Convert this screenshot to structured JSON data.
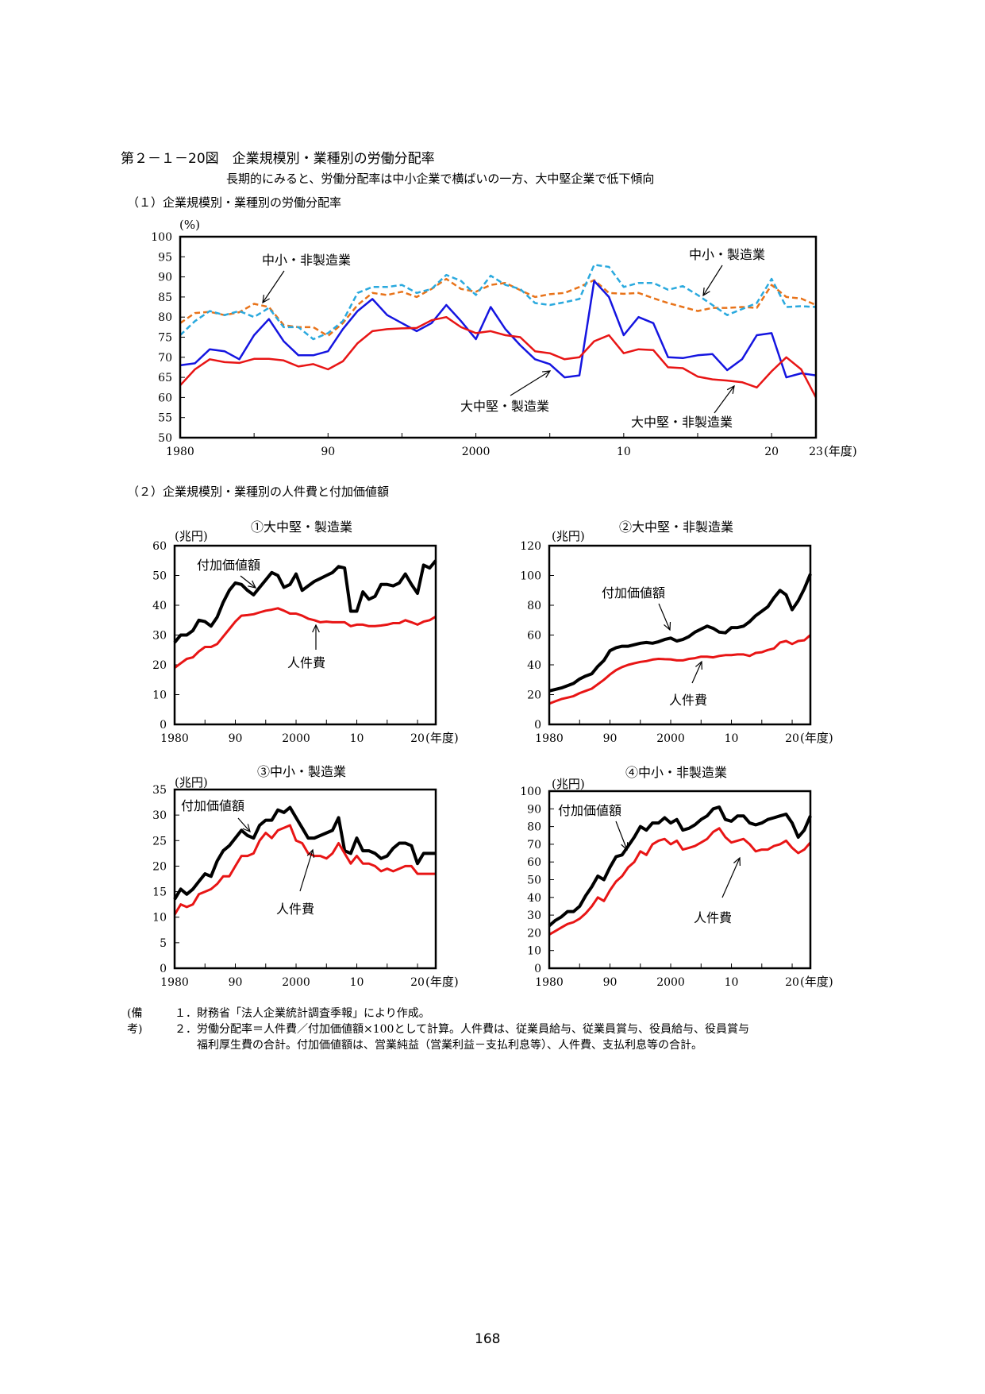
{
  "title": "第２－１－20図　企業規模別・業種別の労働分配率",
  "subtitle": "長期的にみると、労働分配率は中小企業で横ばいの一方、大中堅企業で低下傾向",
  "section1_title": "（１）企業規模別・業種別の労働分配率",
  "section2_title": "（２）企業規模別・業種別の人件費と付加価値額",
  "notes": {
    "label": "(備考)",
    "lines": [
      "１．財務省「法人企業統計調査季報」により作成。",
      "２．労働分配率＝人件費／付加価値額×100として計算。人件費は、従業員給与、従業員賞与、役員給与、役員賞与",
      "　　福利厚生費の合計。付加価値額は、営業純益（営業利益－支払利息等）、人件費、支払利息等の合計。"
    ]
  },
  "page_number": "168",
  "chart_data": [
    {
      "id": "share",
      "type": "line",
      "title": "",
      "ylabel": "(%)",
      "ylim": [
        50,
        100
      ],
      "yticks": [
        50,
        55,
        60,
        65,
        70,
        75,
        80,
        85,
        90,
        95,
        100
      ],
      "xlim": [
        1980,
        2023
      ],
      "xtick_values": [
        1980,
        1990,
        2000,
        2010,
        2020,
        2023
      ],
      "xtick_labels": [
        "1980",
        "90",
        "2000",
        "10",
        "20",
        "23"
      ],
      "xunit": "(年度)",
      "x": [
        1980,
        1981,
        1982,
        1983,
        1984,
        1985,
        1986,
        1987,
        1988,
        1989,
        1990,
        1991,
        1992,
        1993,
        1994,
        1995,
        1996,
        1997,
        1998,
        1999,
        2000,
        2001,
        2002,
        2003,
        2004,
        2005,
        2006,
        2007,
        2008,
        2009,
        2010,
        2011,
        2012,
        2013,
        2014,
        2015,
        2016,
        2017,
        2018,
        2019,
        2020,
        2021,
        2022,
        2023
      ],
      "series": [
        {
          "name": "中小・非製造業",
          "color": "#e8731a",
          "dash": "dash",
          "values": [
            78.5,
            81,
            81.3,
            80.5,
            81.2,
            83.3,
            82.5,
            78,
            77.5,
            77.5,
            75.3,
            78.5,
            83,
            86,
            85.5,
            86.3,
            85,
            87,
            89.5,
            87,
            86.3,
            88,
            88.5,
            86.7,
            85,
            85.7,
            86,
            87.5,
            89.2,
            86,
            85.8,
            86,
            84.7,
            83.5,
            82.5,
            81.5,
            82.3,
            82.3,
            82.5,
            82.3,
            88,
            85,
            84.6,
            83
          ]
        },
        {
          "name": "中小・製造業",
          "color": "#2aa9de",
          "dash": "dash",
          "values": [
            75.5,
            79,
            81.5,
            80.5,
            81.5,
            80,
            82.3,
            77.5,
            77.5,
            74.5,
            76,
            79,
            86,
            87.5,
            87.5,
            88,
            86,
            87,
            90.5,
            89,
            85.5,
            90.3,
            88,
            87,
            83.5,
            83,
            83.7,
            84.5,
            93,
            92.5,
            87.5,
            88.5,
            88.5,
            86.8,
            87.7,
            85.5,
            83,
            80.5,
            82,
            83.5,
            89.5,
            82.5,
            82.7,
            82.5
          ]
        },
        {
          "name": "大中堅・製造業",
          "color": "#1515e0",
          "dash": "solid",
          "values": [
            68,
            68.5,
            72,
            71.5,
            69.5,
            75.5,
            79.5,
            74,
            70.5,
            70.5,
            71.5,
            77,
            81.5,
            84.5,
            80.5,
            78.5,
            76.5,
            78.5,
            83,
            79,
            74.5,
            82.5,
            77,
            73,
            69.5,
            68.3,
            65,
            65.5,
            89,
            85,
            75.5,
            80,
            78.5,
            70,
            69.8,
            70.5,
            70.8,
            66.8,
            69.5,
            75.5,
            76,
            65,
            66,
            65.5
          ]
        },
        {
          "name": "大中堅・非製造業",
          "color": "#e81515",
          "dash": "solid",
          "values": [
            63,
            67,
            69.5,
            68.8,
            68.6,
            69.6,
            69.6,
            69.2,
            67.7,
            68.3,
            67,
            69,
            73.5,
            76.5,
            77,
            77.2,
            77.3,
            79.2,
            80,
            77.5,
            76,
            76.5,
            75.5,
            75,
            71.5,
            71,
            69.5,
            70,
            74,
            75.5,
            71,
            72,
            71.8,
            67.5,
            67.3,
            65.2,
            64.5,
            64.2,
            63.8,
            62.5,
            66.5,
            70,
            67,
            60
          ]
        }
      ],
      "annotations": [
        "中小・非製造業",
        "中小・製造業",
        "大中堅・製造業",
        "大中堅・非製造業"
      ]
    },
    {
      "id": "c1",
      "type": "line",
      "title": "①大中堅・製造業",
      "ylabel": "(兆円)",
      "ylim": [
        0,
        60
      ],
      "yticks": [
        0,
        10,
        20,
        30,
        40,
        50,
        60
      ],
      "xlim": [
        1980,
        2023
      ],
      "xtick_values": [
        1980,
        1990,
        2000,
        2010,
        2020
      ],
      "xtick_labels": [
        "1980",
        "90",
        "2000",
        "10",
        "20"
      ],
      "xunit": "(年度)",
      "x": [
        1980,
        1981,
        1982,
        1983,
        1984,
        1985,
        1986,
        1987,
        1988,
        1989,
        1990,
        1991,
        1992,
        1993,
        1994,
        1995,
        1996,
        1997,
        1998,
        1999,
        2000,
        2001,
        2002,
        2003,
        2004,
        2005,
        2006,
        2007,
        2008,
        2009,
        2010,
        2011,
        2012,
        2013,
        2014,
        2015,
        2016,
        2017,
        2018,
        2019,
        2020,
        2021,
        2022,
        2023
      ],
      "series": [
        {
          "name": "付加価値額",
          "color": "#000000",
          "values": [
            27.5,
            30,
            30,
            31.5,
            35,
            34.5,
            33,
            36,
            41,
            45,
            47.5,
            47,
            45,
            43.5,
            46,
            48.5,
            51,
            50,
            46,
            47,
            50.5,
            45,
            46.5,
            48,
            49,
            50,
            51,
            53,
            52.5,
            38,
            38,
            44.5,
            42,
            43,
            47,
            47,
            46.5,
            47.5,
            50.5,
            47,
            44,
            53.5,
            52.5,
            55
          ]
        },
        {
          "name": "人件費",
          "color": "#e81515",
          "values": [
            19,
            20.5,
            22,
            22.5,
            24.5,
            26,
            26,
            27,
            29.5,
            32,
            34.5,
            36.5,
            36.7,
            37,
            37.6,
            38.2,
            38.5,
            39,
            38.2,
            37.2,
            37.2,
            36.5,
            35.5,
            35,
            34.3,
            34.5,
            34.3,
            34.3,
            34.3,
            33,
            33.5,
            33.5,
            33,
            33,
            33.2,
            33.5,
            34,
            34,
            35,
            34.3,
            33.5,
            34.5,
            35,
            36.2
          ]
        }
      ],
      "annotations": [
        "付加価値額",
        "人件費"
      ]
    },
    {
      "id": "c2",
      "type": "line",
      "title": "②大中堅・非製造業",
      "ylabel": "(兆円)",
      "ylim": [
        0,
        120
      ],
      "yticks": [
        0,
        20,
        40,
        60,
        80,
        100,
        120
      ],
      "xlim": [
        1980,
        2023
      ],
      "xtick_values": [
        1980,
        1990,
        2000,
        2010,
        2020
      ],
      "xtick_labels": [
        "1980",
        "90",
        "2000",
        "10",
        "20"
      ],
      "xunit": "(年度)",
      "x": [
        1980,
        1981,
        1982,
        1983,
        1984,
        1985,
        1986,
        1987,
        1988,
        1989,
        1990,
        1991,
        1992,
        1993,
        1994,
        1995,
        1996,
        1997,
        1998,
        1999,
        2000,
        2001,
        2002,
        2003,
        2004,
        2005,
        2006,
        2007,
        2008,
        2009,
        2010,
        2011,
        2012,
        2013,
        2014,
        2015,
        2016,
        2017,
        2018,
        2019,
        2020,
        2021,
        2022,
        2023
      ],
      "series": [
        {
          "name": "付加価値額",
          "color": "#000000",
          "values": [
            22.5,
            23.5,
            24.5,
            26,
            27.5,
            30.5,
            32.5,
            34,
            39,
            43,
            49.5,
            51.5,
            52.5,
            52.5,
            53.5,
            54.5,
            55,
            54.5,
            55.5,
            57,
            58,
            56,
            57,
            59,
            62,
            64,
            66,
            64.5,
            62,
            61.5,
            65,
            65,
            66,
            69,
            73,
            76,
            79,
            85,
            90,
            87,
            77,
            83,
            91,
            101
          ]
        },
        {
          "name": "人件費",
          "color": "#e81515",
          "values": [
            14,
            15.5,
            17,
            18,
            19,
            21,
            22.5,
            24,
            27,
            30,
            33.5,
            36.5,
            38.5,
            40,
            41,
            42,
            42.5,
            43.5,
            44,
            43.8,
            43.7,
            43,
            43,
            44,
            44.5,
            45.5,
            45.5,
            45,
            46,
            46.5,
            46.5,
            47,
            47,
            46,
            48,
            48.5,
            50,
            51,
            55,
            56,
            54,
            56,
            56.5,
            60
          ]
        }
      ],
      "annotations": [
        "付加価値額",
        "人件費"
      ]
    },
    {
      "id": "c3",
      "type": "line",
      "title": "③中小・製造業",
      "ylabel": "(兆円)",
      "ylim": [
        0,
        35
      ],
      "yticks": [
        0,
        5,
        10,
        15,
        20,
        25,
        30,
        35
      ],
      "xlim": [
        1980,
        2023
      ],
      "xtick_values": [
        1980,
        1990,
        2000,
        2010,
        2020
      ],
      "xtick_labels": [
        "1980",
        "90",
        "2000",
        "10",
        "20"
      ],
      "xunit": "(年度)",
      "x": [
        1980,
        1981,
        1982,
        1983,
        1984,
        1985,
        1986,
        1987,
        1988,
        1989,
        1990,
        1991,
        1992,
        1993,
        1994,
        1995,
        1996,
        1997,
        1998,
        1999,
        2000,
        2001,
        2002,
        2003,
        2004,
        2005,
        2006,
        2007,
        2008,
        2009,
        2010,
        2011,
        2012,
        2013,
        2014,
        2015,
        2016,
        2017,
        2018,
        2019,
        2020,
        2021,
        2022,
        2023
      ],
      "series": [
        {
          "name": "付加価値額",
          "color": "#000000",
          "values": [
            13.5,
            15.5,
            14.5,
            15.5,
            17,
            18.5,
            18,
            21,
            23,
            24,
            25.5,
            27,
            26,
            25.5,
            28,
            29,
            29,
            31,
            30.5,
            31.5,
            29.5,
            27.5,
            25.5,
            25.5,
            26,
            26.5,
            27,
            29.5,
            23,
            22.5,
            25.5,
            23,
            23,
            22.5,
            21.5,
            22,
            23.5,
            24.5,
            24.5,
            24,
            20.5,
            22.5,
            22.5,
            22.5
          ]
        },
        {
          "name": "人件費",
          "color": "#e81515",
          "values": [
            10.5,
            12.5,
            12,
            12.5,
            14.5,
            15,
            15.5,
            16.5,
            18,
            18,
            20,
            22,
            22,
            22.5,
            25,
            26.5,
            25.5,
            27,
            27.5,
            28,
            25,
            24.5,
            22.5,
            22,
            22,
            21.5,
            22.5,
            24.5,
            22.5,
            20.5,
            22,
            20.5,
            20.5,
            20,
            19,
            19.5,
            19,
            19.5,
            20,
            20,
            18.5,
            18.5,
            18.5,
            18.5
          ]
        }
      ],
      "annotations": [
        "付加価値額",
        "人件費"
      ]
    },
    {
      "id": "c4",
      "type": "line",
      "title": "④中小・非製造業",
      "ylabel": "(兆円)",
      "ylim": [
        0,
        100
      ],
      "yticks": [
        0,
        10,
        20,
        30,
        40,
        50,
        60,
        70,
        80,
        90,
        100
      ],
      "xlim": [
        1980,
        2023
      ],
      "xtick_values": [
        1980,
        1990,
        2000,
        2010,
        2020
      ],
      "xtick_labels": [
        "1980",
        "90",
        "2000",
        "10",
        "20"
      ],
      "xunit": "(年度)",
      "x": [
        1980,
        1981,
        1982,
        1983,
        1984,
        1985,
        1986,
        1987,
        1988,
        1989,
        1990,
        1991,
        1992,
        1993,
        1994,
        1995,
        1996,
        1997,
        1998,
        1999,
        2000,
        2001,
        2002,
        2003,
        2004,
        2005,
        2006,
        2007,
        2008,
        2009,
        2010,
        2011,
        2012,
        2013,
        2014,
        2015,
        2016,
        2017,
        2018,
        2019,
        2020,
        2021,
        2022,
        2023
      ],
      "series": [
        {
          "name": "付加価値額",
          "color": "#000000",
          "values": [
            24,
            27,
            29,
            32,
            32,
            35,
            41,
            46,
            52,
            50,
            57,
            63,
            64,
            69,
            74,
            80,
            78,
            82,
            82,
            85,
            82,
            84,
            78,
            79,
            81,
            84,
            86,
            90,
            91,
            84,
            83,
            86,
            86,
            82,
            81,
            82,
            84,
            85,
            86,
            87,
            82,
            74,
            78,
            86
          ]
        },
        {
          "name": "人件費",
          "color": "#e81515",
          "values": [
            19,
            21,
            23,
            25,
            26,
            28,
            31,
            35,
            40,
            38,
            44,
            49,
            52,
            57,
            60,
            66,
            64,
            70,
            72,
            73,
            70,
            72,
            67,
            68,
            69,
            71,
            73,
            77,
            79,
            74,
            71,
            72,
            73,
            70,
            66,
            67,
            67,
            69,
            70,
            72,
            68,
            65,
            67,
            71
          ]
        }
      ],
      "annotations": [
        "付加価値額",
        "人件費"
      ]
    }
  ]
}
